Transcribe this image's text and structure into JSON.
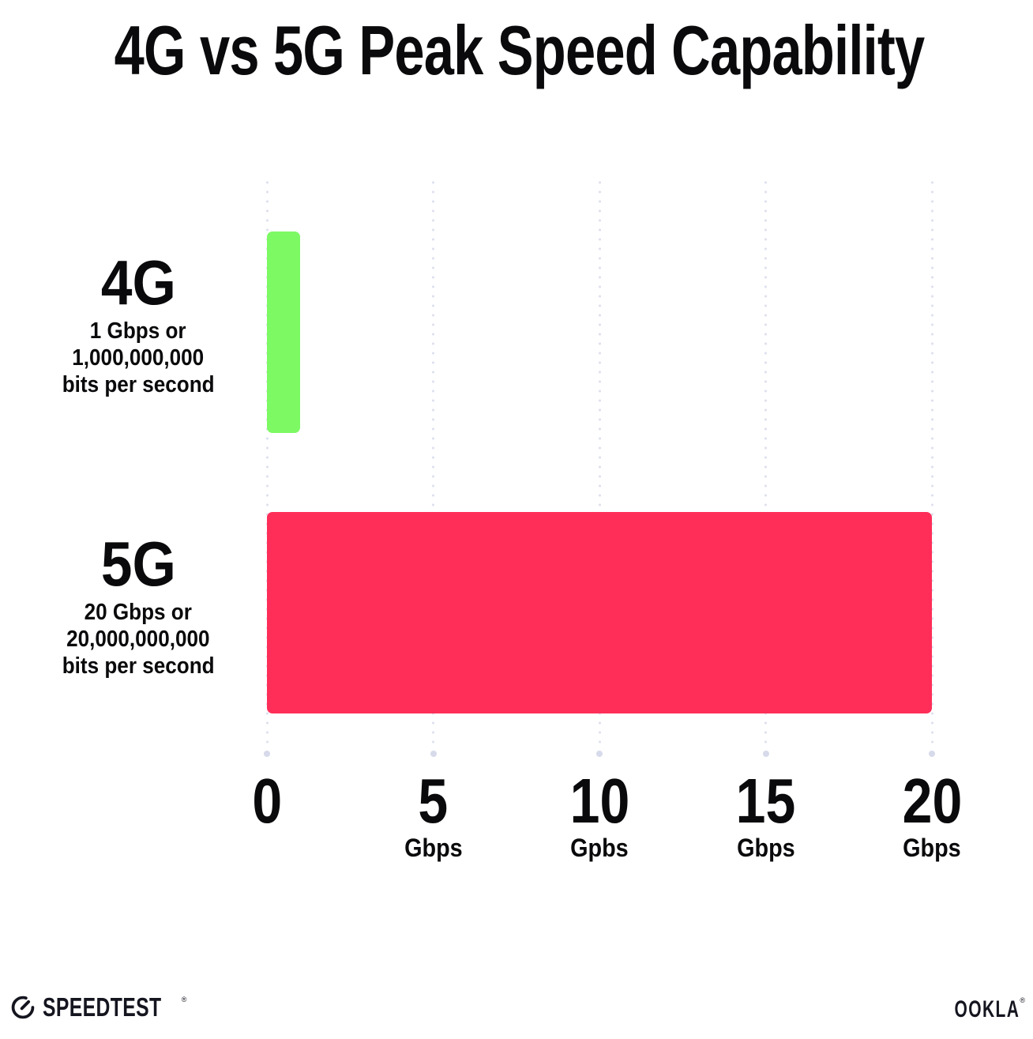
{
  "title": "4G vs 5G Peak Speed Capability",
  "chart_data": {
    "type": "bar",
    "orientation": "horizontal",
    "title": "4G vs 5G Peak Speed Capability",
    "categories": [
      "4G",
      "5G"
    ],
    "values": [
      1,
      20
    ],
    "value_unit": "Gbps",
    "series": [
      {
        "name": "4G",
        "value": 1,
        "color": "#7DF964",
        "sublabel_lines": [
          "1 Gbps or",
          "1,000,000,000",
          "bits per second"
        ]
      },
      {
        "name": "5G",
        "value": 20,
        "color": "#FF2E59",
        "sublabel_lines": [
          "20 Gbps or",
          "20,000,000,000",
          "bits per second"
        ]
      }
    ],
    "xlim": [
      0,
      20
    ],
    "x_tick_values": [
      0,
      5,
      10,
      15,
      20
    ],
    "x_ticks": [
      {
        "label": "0",
        "unit": ""
      },
      {
        "label": "5",
        "unit": "Gbps"
      },
      {
        "label": "10",
        "unit": "Gpbs"
      },
      {
        "label": "15",
        "unit": "Gbps"
      },
      {
        "label": "20",
        "unit": "Gbps"
      }
    ],
    "grid": "dotted-vertical-gridlines",
    "legend": "none"
  },
  "colors": {
    "background": "#FFFFFF",
    "bar_4g": "#7DF964",
    "bar_5g": "#FF2E59",
    "gridline_dot": "#DFE1EE",
    "gridline_end_dot": "#D7DAEA",
    "text": "#0A0A0C"
  },
  "footer": {
    "speedtest_text": "SPEEDTEST",
    "speedtest_mark": "®",
    "speedtest_icon": "gauge-icon",
    "ookla_text": "OOKLA",
    "ookla_mark": "®"
  }
}
